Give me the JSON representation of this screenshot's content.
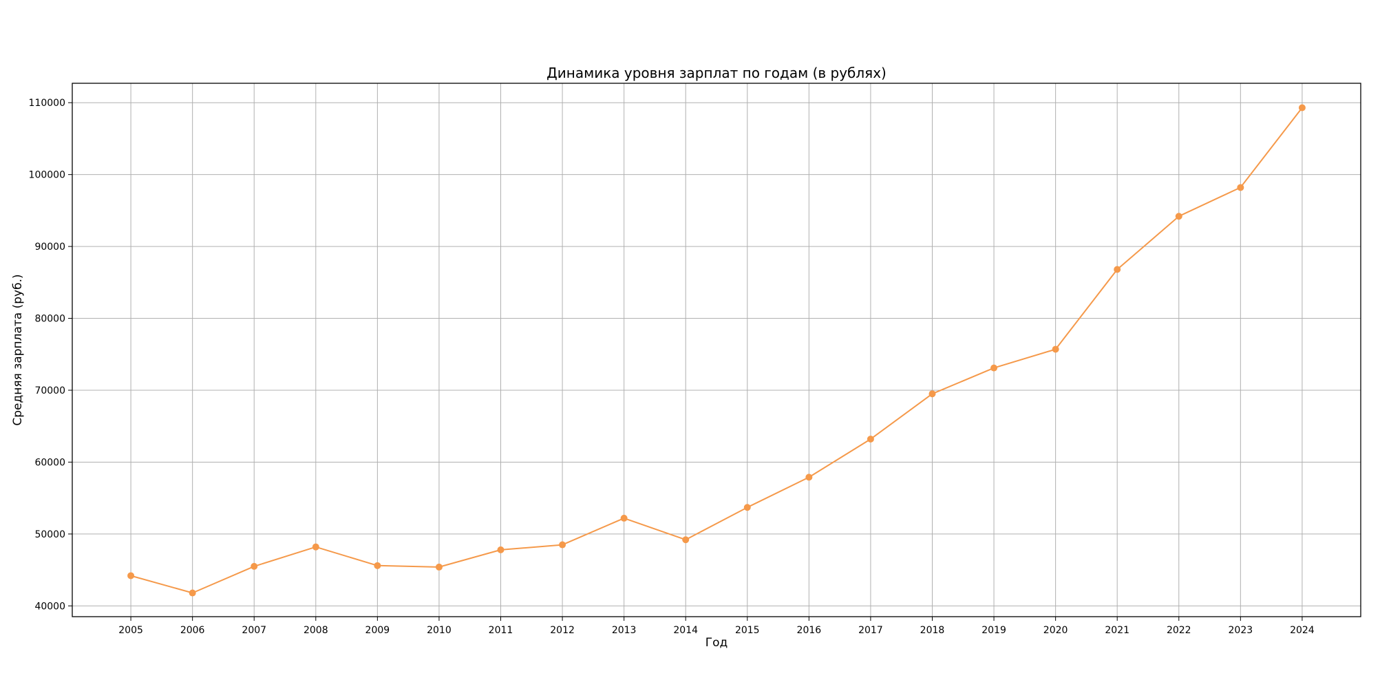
{
  "chart_data": {
    "type": "line",
    "title": "Динамика уровня зарплат по годам (в рублях)",
    "xlabel": "Год",
    "ylabel": "Средняя зарплата (руб.)",
    "x": [
      2005,
      2006,
      2007,
      2008,
      2009,
      2010,
      2011,
      2012,
      2013,
      2014,
      2015,
      2016,
      2017,
      2018,
      2019,
      2020,
      2021,
      2022,
      2023,
      2024
    ],
    "series": [
      {
        "values": [
          44200,
          41800,
          45500,
          48200,
          45600,
          45400,
          47800,
          48500,
          52200,
          49200,
          53700,
          57900,
          63200,
          69500,
          73100,
          75700,
          86800,
          94200,
          98200,
          109300
        ],
        "color": "#F5994A",
        "marker": "circle"
      }
    ],
    "xlim": [
      2004.05,
      2024.95
    ],
    "ylim": [
      38500,
      112700
    ],
    "yticks": [
      40000,
      50000,
      60000,
      70000,
      80000,
      90000,
      100000,
      110000
    ],
    "grid": true,
    "legend": "none",
    "colors": {
      "grid": "#b0b0b0",
      "axis": "#000000"
    }
  }
}
